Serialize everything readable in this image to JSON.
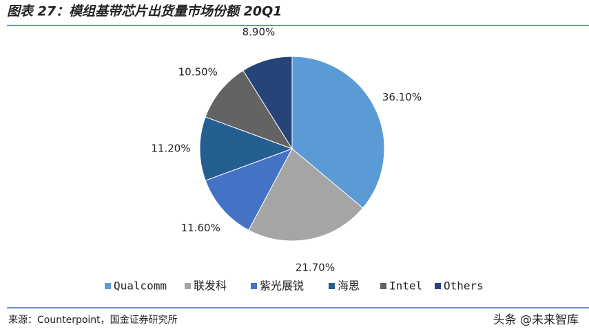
{
  "chart_data": {
    "type": "pie",
    "title": "图表 27：模组基带芯片出货量市场份额 20Q1",
    "categories": [
      "Qualcomm",
      "联发科",
      "紫光展锐",
      "海思",
      "Intel",
      "Others"
    ],
    "values": [
      36.1,
      21.7,
      11.6,
      11.2,
      10.5,
      8.9
    ],
    "value_labels": [
      "36.10%",
      "21.70%",
      "11.60%",
      "11.20%",
      "10.50%",
      "8.90%"
    ],
    "colors": [
      "#5b9bd5",
      "#a5a5a5",
      "#4472c4",
      "#255e91",
      "#636363",
      "#264478"
    ],
    "source": "来源：Counterpoint，国金证券研究所",
    "watermark": "头条 @未来智库"
  }
}
